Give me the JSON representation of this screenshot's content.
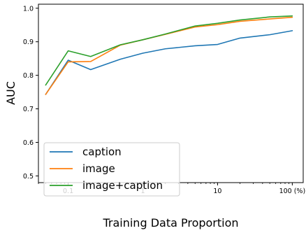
{
  "chart_data": {
    "type": "line",
    "xlabel": "Training Data Proportion",
    "ylabel": "AUC",
    "x_scale": "log",
    "xlim": [
      0.04,
      140
    ],
    "ylim": [
      0.48,
      1.012
    ],
    "x_ticks": [
      {
        "value": 0.1,
        "label": "0.1"
      },
      {
        "value": 1,
        "label": "1"
      },
      {
        "value": 10,
        "label": "10"
      },
      {
        "value": 100,
        "label": "100 (%)"
      }
    ],
    "y_ticks": [
      {
        "value": 0.5,
        "label": "0.5"
      },
      {
        "value": 0.6,
        "label": "0.6"
      },
      {
        "value": 0.7,
        "label": "0.7"
      },
      {
        "value": 0.8,
        "label": "0.8"
      },
      {
        "value": 0.9,
        "label": "0.9"
      },
      {
        "value": 1.0,
        "label": "1.0"
      }
    ],
    "grid": false,
    "legend_position": "lower-left",
    "x": [
      0.05,
      0.1,
      0.2,
      0.5,
      1,
      2,
      5,
      10,
      20,
      50,
      100
    ],
    "series": [
      {
        "name": "caption",
        "color": "#1f77b4",
        "values": [
          0.743,
          0.845,
          0.817,
          0.848,
          0.866,
          0.879,
          0.888,
          0.892,
          0.911,
          0.921,
          0.933
        ]
      },
      {
        "name": "image",
        "color": "#ff7f0e",
        "values": [
          0.743,
          0.84,
          0.841,
          0.89,
          0.906,
          0.922,
          0.944,
          0.951,
          0.961,
          0.968,
          0.973
        ]
      },
      {
        "name": "image+caption",
        "color": "#2ca02c",
        "values": [
          0.771,
          0.873,
          0.856,
          0.891,
          0.906,
          0.923,
          0.947,
          0.955,
          0.965,
          0.974,
          0.977
        ]
      }
    ]
  }
}
